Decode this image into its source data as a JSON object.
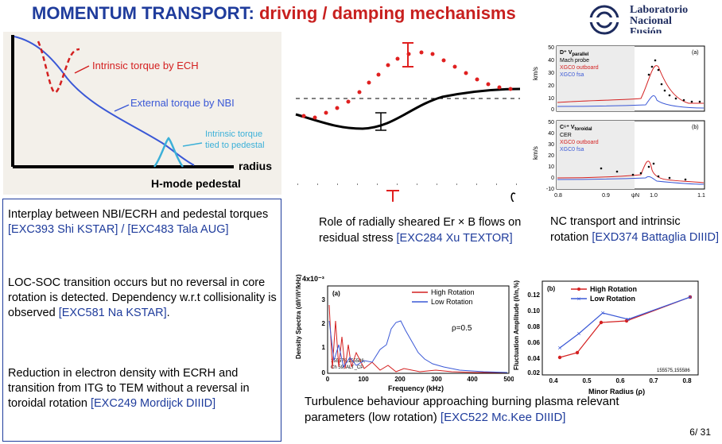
{
  "title": {
    "part1": "MOMENTUM TRANSPORT:",
    "part2": " driving / damping mechanisms"
  },
  "logo": {
    "line1": "Laboratorio",
    "line2": "Nacional",
    "line3": "Fusión"
  },
  "fig1": {
    "label_ech": "Intrinsic torque by ECH",
    "label_nbi": "External torque by NBI",
    "label_ped1": "Intrinsic torque",
    "label_ped2": "tied to pedestal",
    "xlabel": "radius",
    "caption": "H-mode pedestal"
  },
  "fig3": {
    "panel_a": {
      "tag": "(a)",
      "l1": "D⁺ V",
      "l1sub": "parallel",
      "l2": "Mach probe",
      "l3": "XGC0 outboard",
      "l4": "XGC0 fsa",
      "ylabel": "km/s",
      "yticks": [
        "50",
        "40",
        "30",
        "20",
        "10",
        "0"
      ]
    },
    "panel_b": {
      "tag": "(b)",
      "l1": "C⁶⁺ V",
      "l1sub": "toroidal",
      "l2": "CER",
      "l3": "XGC0 outboard",
      "l4": "XGC0 fsa",
      "ylabel": "km/s",
      "yticks": [
        "50",
        "40",
        "30",
        "20",
        "10",
        "0",
        "-10"
      ]
    },
    "xticks": [
      "0.8",
      "0.9",
      "1.0",
      "1.1"
    ],
    "xlabel": "ψN"
  },
  "fig4": {
    "yexp": "4x10⁻³",
    "tag": "(a)",
    "legend_high": "High Rotation",
    "legend_low": "Low Rotation",
    "rho": "ρ=0.5",
    "shots1": "155578,155586,",
    "shots2": "Ch 59, ALT_CP",
    "xlabel": "Frequency (kHz)",
    "ylabel": "Density Spectra (dñ²/ñ²/kHz)",
    "xticks": [
      "0",
      "100",
      "200",
      "300",
      "400",
      "500"
    ],
    "yticks": [
      "3",
      "2",
      "1",
      "0"
    ]
  },
  "fig5": {
    "tag": "(b)",
    "legend_high": "High Rotation",
    "legend_low": "Low Rotation",
    "shots": "155575,155586",
    "xlabel": "Minor Radius (ρ)",
    "ylabel": "Fluctuation Amplitude (ñ/n,%)",
    "xticks": [
      "0.4",
      "0.5",
      "0.6",
      "0.7",
      "0.8"
    ],
    "yticks": [
      "0.12",
      "0.10",
      "0.08",
      "0.06",
      "0.04",
      "0.02"
    ]
  },
  "left_text": {
    "p1a": "Interplay between NBI/ECRH and pedestal torques ",
    "p1b": "[EXC393 Shi KSTAR] / [EXC483 Tala AUG]",
    "p2a": "LOC-SOC transition occurs but no reversal in core rotation is detected. Dependency w.r.t collisionality is observed ",
    "p2b": "[EXC581 Na KSTAR]",
    "p2c": ".",
    "p3a": "Reduction in electron density with ECRH and transition from ITG to TEM without a reversal in toroidal rotation ",
    "p3b": "[EXC249 Mordijck DIIID]"
  },
  "caption_mid": {
    "a": "Role of radially sheared Er × B flows on residual stress ",
    "b": "[EXC284 Xu TEXTOR]"
  },
  "caption_right": {
    "a": "NC transport and intrinsic rotation ",
    "b": "[EXD374 Battaglia DIIID]"
  },
  "caption_bottom": {
    "a": "Turbulence behaviour approaching burning plasma relevant parameters (low rotation) ",
    "b": "[EXC522 Mc.Kee DIIID]"
  },
  "slide_number": "6/ 31",
  "colors": {
    "title_blue": "#1f3c9c",
    "title_red": "#c8201f"
  }
}
